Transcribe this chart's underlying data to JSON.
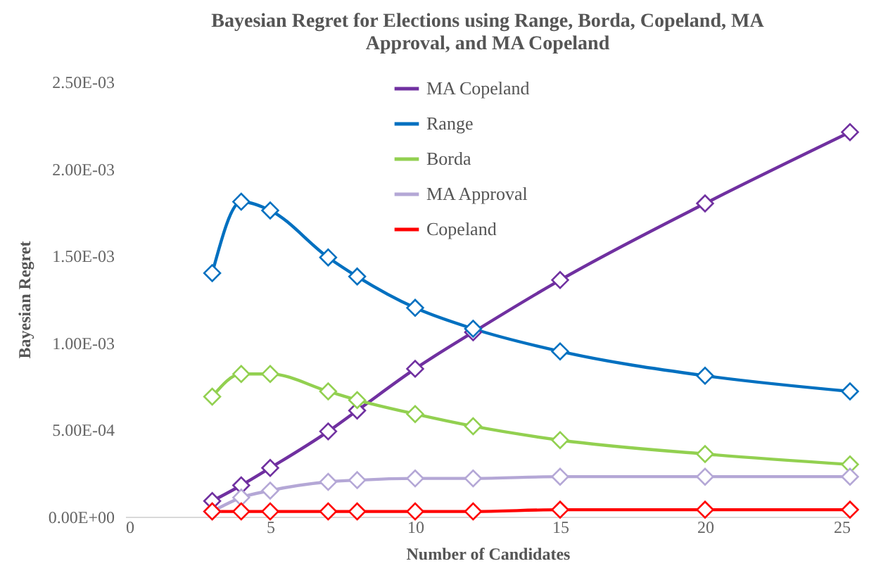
{
  "chart_data": {
    "type": "line",
    "title": "Bayesian Regret for Elections using Range, Borda, Copeland, MA Approval, and MA Copeland",
    "xlabel": "Number of Candidates",
    "ylabel": "Bayesian Regret",
    "x": [
      3,
      4,
      5,
      7,
      8,
      10,
      12,
      15,
      20,
      25
    ],
    "series": [
      {
        "name": "MA Copeland",
        "color": "#7030a0",
        "values": [
          9e-05,
          0.00018,
          0.00028,
          0.00049,
          0.00061,
          0.00085,
          0.00106,
          0.00136,
          0.0018,
          0.00221
        ]
      },
      {
        "name": "Range",
        "color": "#0070c0",
        "values": [
          0.0014,
          0.00181,
          0.00176,
          0.00149,
          0.00138,
          0.0012,
          0.00108,
          0.00095,
          0.00081,
          0.00072
        ]
      },
      {
        "name": "Borda",
        "color": "#92d050",
        "values": [
          0.00069,
          0.00082,
          0.00082,
          0.00072,
          0.00067,
          0.00059,
          0.00052,
          0.00044,
          0.00036,
          0.0003
        ]
      },
      {
        "name": "MA Approval",
        "color": "#b4a7d6",
        "values": [
          3e-05,
          0.00011,
          0.00015,
          0.0002,
          0.00021,
          0.00022,
          0.00022,
          0.00023,
          0.00023,
          0.00023
        ]
      },
      {
        "name": "Copeland",
        "color": "#ff0000",
        "values": [
          3e-05,
          3e-05,
          3e-05,
          3e-05,
          3e-05,
          3e-05,
          3e-05,
          4e-05,
          4e-05,
          4e-05
        ]
      }
    ],
    "xlim": [
      0,
      25
    ],
    "xticks": [
      0,
      5,
      10,
      15,
      20,
      25
    ],
    "ylim": [
      0,
      0.0025
    ],
    "yticks": [
      {
        "value": 0,
        "label": "0.00E+00"
      },
      {
        "value": 0.0005,
        "label": "5.00E-04"
      },
      {
        "value": 0.001,
        "label": "1.00E-03"
      },
      {
        "value": 0.0015,
        "label": "1.50E-03"
      },
      {
        "value": 0.002,
        "label": "2.00E-03"
      },
      {
        "value": 0.0025,
        "label": "2.50E-03"
      }
    ],
    "grid": false,
    "legend": "top",
    "marker": "diamond",
    "line_style": "solid"
  }
}
